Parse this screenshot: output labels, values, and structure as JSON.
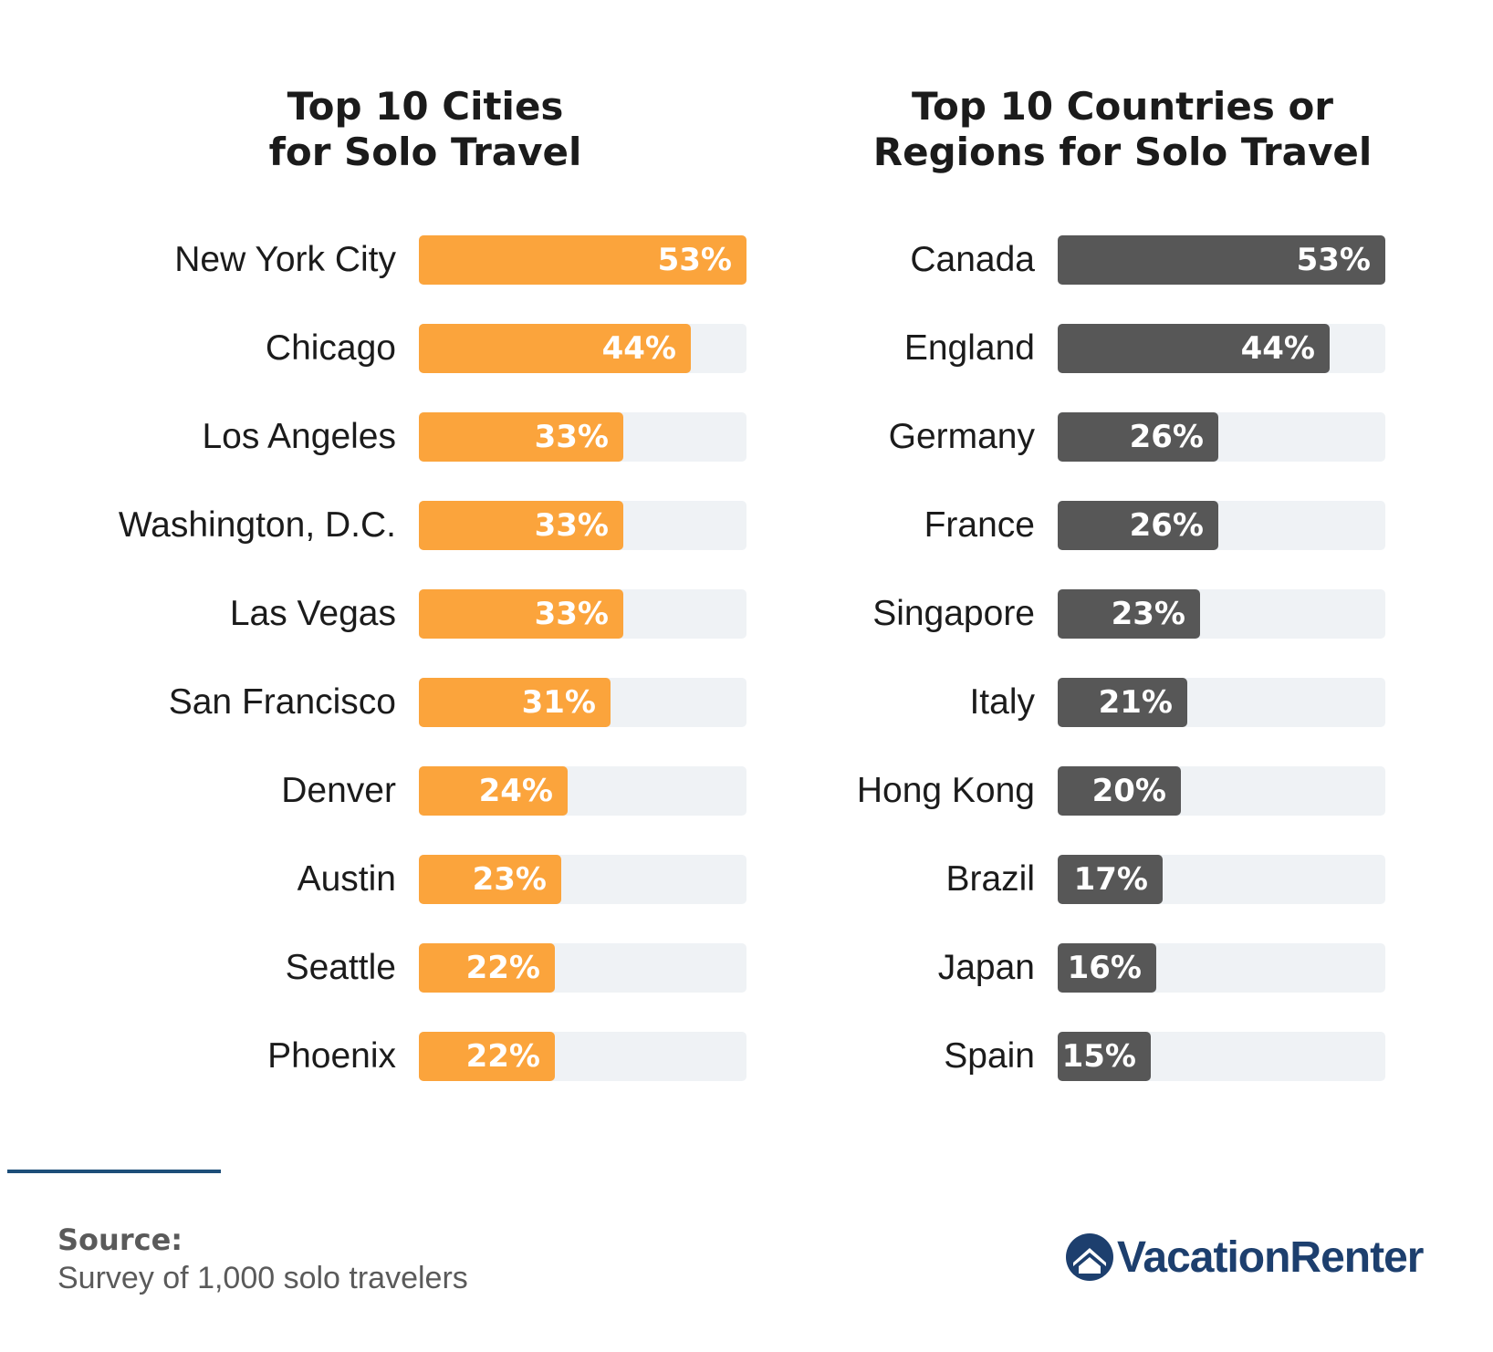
{
  "colors": {
    "left_bar": "#fba43c",
    "right_bar": "#575757",
    "track": "#eff2f5",
    "divider": "#1d4e79",
    "logo": "#1d3f6e"
  },
  "chart_data": [
    {
      "type": "bar",
      "orientation": "horizontal",
      "title": "Top 10 Cities\nfor Solo Travel",
      "categories": [
        "New York City",
        "Chicago",
        "Los Angeles",
        "Washington, D.C.",
        "Las Vegas",
        "San Francisco",
        "Denver",
        "Austin",
        "Seattle",
        "Phoenix"
      ],
      "values": [
        53,
        44,
        33,
        33,
        33,
        31,
        24,
        23,
        22,
        22
      ],
      "value_labels": [
        "53%",
        "44%",
        "33%",
        "33%",
        "33%",
        "31%",
        "24%",
        "23%",
        "22%",
        "22%"
      ],
      "xlim": [
        0,
        53
      ],
      "grid": false,
      "legend": "none"
    },
    {
      "type": "bar",
      "orientation": "horizontal",
      "title": "Top 10 Countries or\nRegions for Solo Travel",
      "categories": [
        "Canada",
        "England",
        "Germany",
        "France",
        "Singapore",
        "Italy",
        "Hong Kong",
        "Brazil",
        "Japan",
        "Spain"
      ],
      "values": [
        53,
        44,
        26,
        26,
        23,
        21,
        20,
        17,
        16,
        15
      ],
      "value_labels": [
        "53%",
        "44%",
        "26%",
        "26%",
        "23%",
        "21%",
        "20%",
        "17%",
        "16%",
        "15%"
      ],
      "xlim": [
        0,
        53
      ],
      "grid": false,
      "legend": "none"
    }
  ],
  "footer": {
    "source_label": "Source:",
    "source_text": "Survey of 1,000 solo travelers",
    "logo_text": "VacationRenter",
    "logo_icon": "house-icon"
  }
}
